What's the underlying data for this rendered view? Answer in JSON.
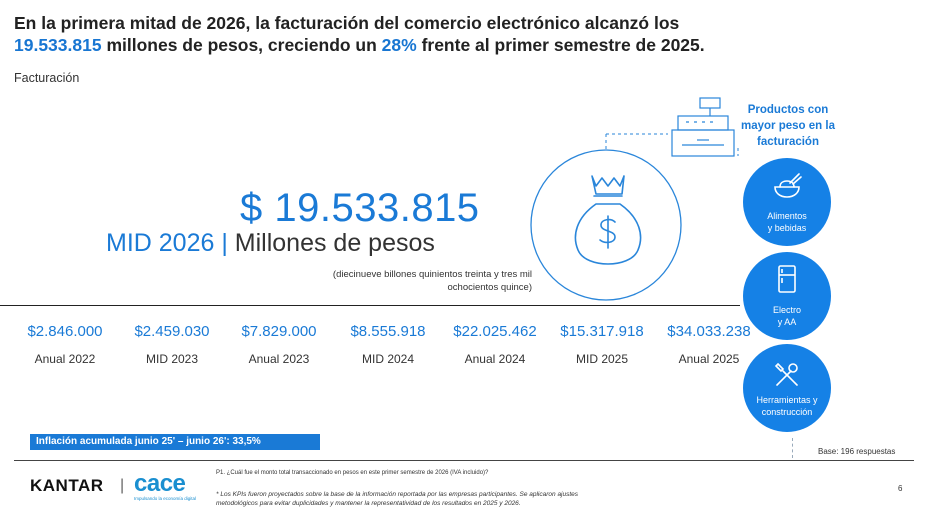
{
  "title": {
    "part1": "En la primera mitad de 2026, la facturación del comercio electrónico alcanzó los",
    "highlight_amount": "19.533.815",
    "part2": " millones de pesos, creciendo un ",
    "highlight_pct": "28%",
    "part3": " frente al primer semestre de 2025."
  },
  "subtitle": "Facturación",
  "headline": {
    "amount": "$ 19.533.815",
    "period": "MID 2026",
    "separator": " | ",
    "unit": "Millones de pesos",
    "words_line1": "(diecinueve billones quinientos treinta y tres mil",
    "words_line2": "ochocientos quince)"
  },
  "history": [
    {
      "value": "$2.846.000",
      "label": "Anual 2022"
    },
    {
      "value": "$2.459.030",
      "label": "MID 2023"
    },
    {
      "value": "$7.829.000",
      "label": "Anual 2023"
    },
    {
      "value": "$8.555.918",
      "label": "MID 2024"
    },
    {
      "value": "$22.025.462",
      "label": "Anual 2024"
    },
    {
      "value": "$15.317.918",
      "label": "MID 2025"
    },
    {
      "value": "$34.033.238",
      "label": "Anual 2025"
    }
  ],
  "inflation": "Inflación acumulada junio 25' – junio 26': 33,5%",
  "panel": {
    "title_line1": "Productos con",
    "title_line2": "mayor peso en la",
    "title_line3": "facturación",
    "categories": [
      {
        "line1": "Alimentos",
        "line2": "y bebidas",
        "icon": "food-bowl-icon"
      },
      {
        "line1": "Electro",
        "line2": "y AA",
        "icon": "refrigerator-icon"
      },
      {
        "line1": "Herramientas y",
        "line2": "construcción",
        "icon": "tools-icon"
      }
    ]
  },
  "base": "Base: 196 respuestas",
  "footer": {
    "brand": "KANTAR",
    "partner": "cace",
    "partner_tagline": "Impulsando la economía digital",
    "question": "P1. ¿Cuál fue el monto total transaccionado en pesos en este primer semestre de 2026 (IVA incluido)?",
    "note_line1": "* Los KPIs fueron proyectados sobre la base de la información reportada por las empresas participantes. Se aplicaron ajustes",
    "note_line2": "metodológicos para evitar duplicidades y mantener la representatividad de los resultados en 2025 y 2026.",
    "page": "6"
  },
  "colors": {
    "accent": "#1a7ad6",
    "circle": "#1581e6",
    "text": "#222222"
  }
}
